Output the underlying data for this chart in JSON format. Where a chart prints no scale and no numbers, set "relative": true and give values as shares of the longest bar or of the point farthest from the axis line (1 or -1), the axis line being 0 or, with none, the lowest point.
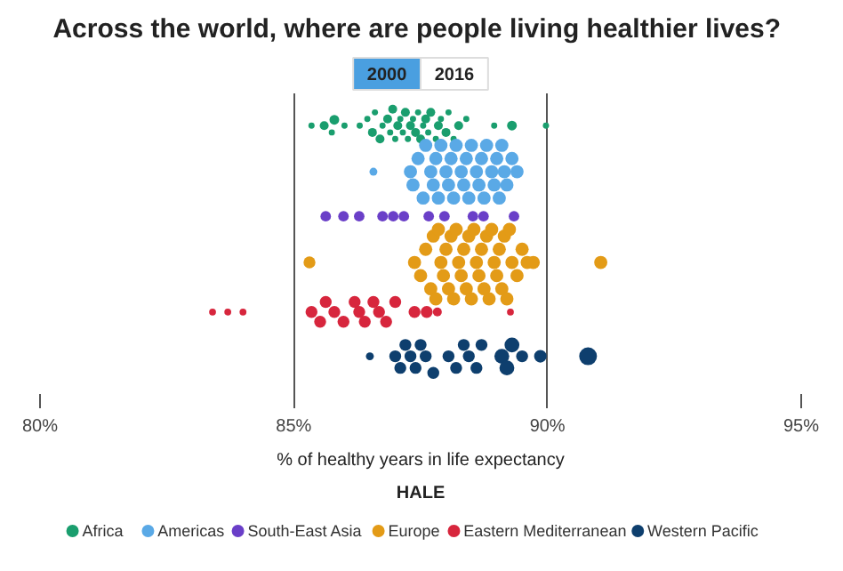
{
  "chart_data": {
    "type": "bubble",
    "relative": true,
    "title": "Across the world, where are people living healthier lives?",
    "annotations": [
      "2000",
      "2016"
    ],
    "xlabel": "% of healthy years in life expectancy",
    "legend_title": "HALE",
    "legend": "bottom",
    "grid": "x",
    "marker": "circle",
    "xlim": [
      80,
      95
    ],
    "xticks": [
      {
        "value": 80,
        "label": "80%"
      },
      {
        "value": 85,
        "label": "85%"
      },
      {
        "value": 90,
        "label": "90%"
      },
      {
        "value": 95,
        "label": "95%"
      }
    ],
    "series": [
      {
        "name": "Africa",
        "color": "#1a9e6e",
        "x": [
          85.35,
          85.6,
          85.75,
          85.8,
          86.0,
          86.3,
          86.45,
          86.55,
          86.6,
          86.7,
          86.75,
          86.85,
          86.9,
          86.95,
          87.0,
          87.05,
          87.1,
          87.15,
          87.2,
          87.25,
          87.3,
          87.35,
          87.4,
          87.45,
          87.5,
          87.55,
          87.6,
          87.65,
          87.7,
          87.8,
          87.85,
          87.9,
          88.0,
          88.05,
          88.15,
          88.25,
          88.4,
          88.95,
          89.3,
          89.97
        ],
        "values": [
          0.938,
          0.938,
          0.912,
          0.96,
          0.938,
          0.938,
          0.963,
          0.912,
          0.988,
          0.887,
          0.938,
          0.963,
          0.912,
          1.0,
          0.887,
          0.938,
          0.963,
          0.912,
          0.988,
          0.887,
          0.938,
          0.963,
          0.912,
          0.988,
          0.887,
          0.938,
          0.963,
          0.912,
          0.988,
          0.887,
          0.938,
          0.963,
          0.912,
          0.988,
          0.887,
          0.938,
          0.963,
          0.938,
          0.938,
          0.938
        ],
        "sizes": [
          0.12,
          0.25,
          0.12,
          0.3,
          0.12,
          0.12,
          0.12,
          0.25,
          0.12,
          0.25,
          0.12,
          0.25,
          0.12,
          0.25,
          0.12,
          0.25,
          0.12,
          0.12,
          0.25,
          0.12,
          0.25,
          0.12,
          0.25,
          0.12,
          0.25,
          0.12,
          0.25,
          0.12,
          0.25,
          0.12,
          0.25,
          0.12,
          0.25,
          0.12,
          0.12,
          0.25,
          0.12,
          0.12,
          0.3,
          0.12
        ]
      },
      {
        "name": "Americas",
        "color": "#5aa9e6",
        "x": [
          86.57,
          87.3,
          87.35,
          87.45,
          87.55,
          87.6,
          87.7,
          87.75,
          87.8,
          87.85,
          87.9,
          88.0,
          88.05,
          88.1,
          88.15,
          88.2,
          88.3,
          88.35,
          88.4,
          88.45,
          88.5,
          88.6,
          88.65,
          88.7,
          88.75,
          88.8,
          88.9,
          88.95,
          89.0,
          89.05,
          89.1,
          89.15,
          89.2,
          89.3,
          89.4
        ],
        "values": [
          0.763,
          0.763,
          0.713,
          0.813,
          0.663,
          0.863,
          0.763,
          0.713,
          0.813,
          0.663,
          0.863,
          0.763,
          0.713,
          0.813,
          0.663,
          0.863,
          0.763,
          0.713,
          0.813,
          0.663,
          0.863,
          0.763,
          0.713,
          0.813,
          0.663,
          0.863,
          0.763,
          0.713,
          0.813,
          0.663,
          0.863,
          0.763,
          0.713,
          0.813,
          0.763
        ],
        "sizes": [
          0.2,
          0.55,
          0.55,
          0.55,
          0.55,
          0.55,
          0.55,
          0.55,
          0.55,
          0.55,
          0.55,
          0.55,
          0.55,
          0.55,
          0.55,
          0.55,
          0.55,
          0.55,
          0.55,
          0.55,
          0.55,
          0.55,
          0.55,
          0.55,
          0.55,
          0.55,
          0.55,
          0.55,
          0.55,
          0.55,
          0.55,
          0.55,
          0.55,
          0.55,
          0.55
        ]
      },
      {
        "name": "South-East Asia",
        "color": "#6a3fc8",
        "x": [
          85.63,
          85.98,
          86.29,
          86.75,
          86.96,
          87.17,
          87.66,
          87.97,
          88.53,
          88.74,
          89.34
        ],
        "values": [
          0.594,
          0.594,
          0.594,
          0.594,
          0.594,
          0.594,
          0.594,
          0.594,
          0.594,
          0.594,
          0.594
        ],
        "sizes": [
          0.35,
          0.35,
          0.35,
          0.35,
          0.35,
          0.35,
          0.35,
          0.35,
          0.35,
          0.35,
          0.35
        ]
      },
      {
        "name": "Europe",
        "color": "#e39b17",
        "x": [
          85.31,
          87.38,
          87.5,
          87.6,
          87.7,
          87.75,
          87.8,
          87.85,
          87.9,
          87.95,
          88.0,
          88.05,
          88.1,
          88.15,
          88.2,
          88.25,
          88.3,
          88.35,
          88.4,
          88.45,
          88.5,
          88.55,
          88.6,
          88.65,
          88.7,
          88.75,
          88.8,
          88.85,
          88.9,
          88.95,
          89.0,
          89.05,
          89.1,
          89.15,
          89.2,
          89.25,
          89.3,
          89.4,
          89.5,
          89.6,
          89.72,
          91.05
        ],
        "values": [
          0.419,
          0.419,
          0.369,
          0.469,
          0.319,
          0.519,
          0.281,
          0.544,
          0.419,
          0.369,
          0.469,
          0.319,
          0.519,
          0.281,
          0.544,
          0.419,
          0.369,
          0.469,
          0.319,
          0.519,
          0.281,
          0.544,
          0.419,
          0.369,
          0.469,
          0.319,
          0.519,
          0.281,
          0.544,
          0.419,
          0.369,
          0.469,
          0.319,
          0.519,
          0.281,
          0.544,
          0.419,
          0.369,
          0.469,
          0.419,
          0.419,
          0.419
        ],
        "sizes": [
          0.45,
          0.55,
          0.55,
          0.55,
          0.55,
          0.55,
          0.55,
          0.55,
          0.55,
          0.55,
          0.55,
          0.55,
          0.55,
          0.55,
          0.55,
          0.55,
          0.55,
          0.55,
          0.55,
          0.55,
          0.55,
          0.55,
          0.55,
          0.55,
          0.55,
          0.55,
          0.55,
          0.55,
          0.55,
          0.55,
          0.55,
          0.55,
          0.55,
          0.55,
          0.55,
          0.55,
          0.55,
          0.55,
          0.55,
          0.55,
          0.55,
          0.55
        ]
      },
      {
        "name": "Eastern Mediterranean",
        "color": "#d7263d",
        "x": [
          83.4,
          83.7,
          84.0,
          85.35,
          85.52,
          85.63,
          85.8,
          85.98,
          86.2,
          86.29,
          86.4,
          86.57,
          86.68,
          86.82,
          87.0,
          87.38,
          87.62,
          87.83,
          89.27
        ],
        "values": [
          0.231,
          0.231,
          0.231,
          0.231,
          0.194,
          0.269,
          0.231,
          0.194,
          0.269,
          0.231,
          0.194,
          0.269,
          0.231,
          0.194,
          0.269,
          0.231,
          0.231,
          0.231,
          0.231
        ],
        "sizes": [
          0.15,
          0.15,
          0.15,
          0.45,
          0.45,
          0.45,
          0.45,
          0.45,
          0.45,
          0.45,
          0.45,
          0.45,
          0.45,
          0.45,
          0.45,
          0.45,
          0.45,
          0.25,
          0.15
        ]
      },
      {
        "name": "Western Pacific",
        "color": "#0e3f6e",
        "x": [
          86.5,
          87.0,
          87.1,
          87.2,
          87.3,
          87.4,
          87.5,
          87.6,
          87.75,
          88.05,
          88.2,
          88.35,
          88.45,
          88.6,
          88.7,
          89.1,
          89.2,
          89.3,
          89.5,
          89.86,
          90.8
        ],
        "values": [
          0.063,
          0.063,
          0.019,
          0.106,
          0.063,
          0.019,
          0.106,
          0.063,
          0.0,
          0.063,
          0.019,
          0.106,
          0.063,
          0.019,
          0.106,
          0.063,
          0.019,
          0.106,
          0.063,
          0.063,
          0.063
        ],
        "sizes": [
          0.2,
          0.45,
          0.45,
          0.45,
          0.45,
          0.45,
          0.45,
          0.45,
          0.45,
          0.45,
          0.45,
          0.45,
          0.45,
          0.45,
          0.45,
          0.7,
          0.7,
          0.7,
          0.45,
          0.5,
          1.0
        ]
      }
    ]
  }
}
